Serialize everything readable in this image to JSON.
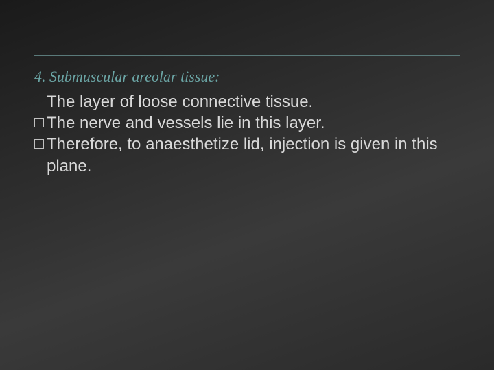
{
  "slide": {
    "heading": "4. Submuscular areolar tissue:",
    "line1": "The layer of loose connective tissue.",
    "bullet1": "The nerve and vessels lie in this layer.",
    "bullet2": "Therefore, to anaesthetize lid, injection is given in this plane."
  },
  "styling": {
    "background_gradient_start": "#1a1a1a",
    "background_gradient_end": "#3a3a3a",
    "heading_color": "#6ba5a5",
    "body_text_color": "#d8d8d8",
    "divider_color": "#5a7a7a",
    "heading_fontsize": 22,
    "body_fontsize": 24,
    "heading_font": "Georgia serif italic",
    "body_font": "Arial sans-serif"
  }
}
